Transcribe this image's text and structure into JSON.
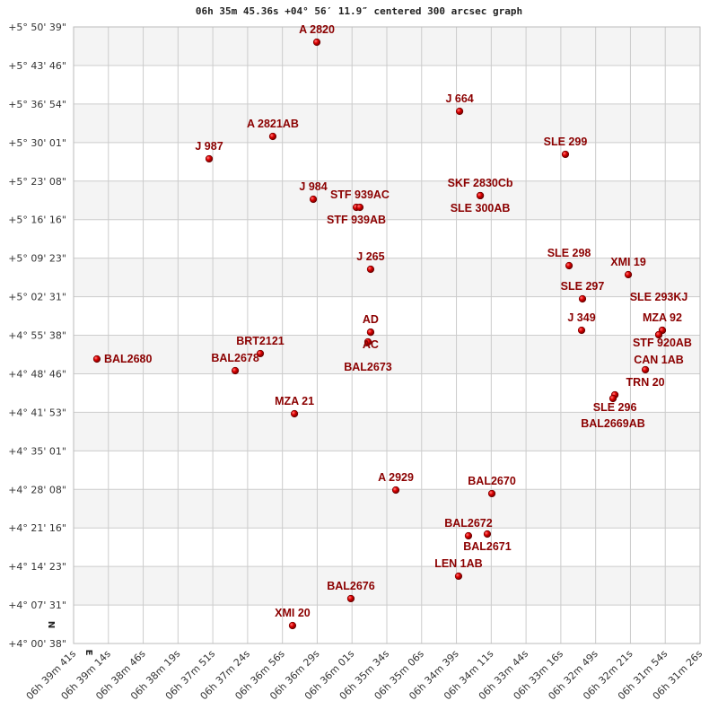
{
  "chart_data": {
    "type": "scatter",
    "title": "06h 35m 45.36s +04° 56′ 11.9″ centered 300 arcsec graph",
    "x_axis": {
      "direction": "RA decreasing to the right",
      "ticks": [
        "06h 39m 41s",
        "06h 39m 14s",
        "06h 38m 46s",
        "06h 38m 19s",
        "06h 37m 51s",
        "06h 37m 24s",
        "06h 36m 56s",
        "06h 36m 29s",
        "06h 36m 01s",
        "06h 35m 34s",
        "06h 35m 06s",
        "06h 34m 39s",
        "06h 34m 11s",
        "06h 33m 44s",
        "06h 33m 16s",
        "06h 32m 49s",
        "06h 32m 21s",
        "06h 31m 54s",
        "06h 31m 26s"
      ]
    },
    "y_axis": {
      "ticks": [
        "+5° 50' 39\"",
        "+5° 43' 46\"",
        "+5° 36' 54\"",
        "+5° 30' 01\"",
        "+5° 23' 08\"",
        "+5° 16' 16\"",
        "+5° 09' 23\"",
        "+5° 02' 31\"",
        "+4° 55' 38\"",
        "+4° 48' 46\"",
        "+4° 41' 53\"",
        "+4° 35' 01\"",
        "+4° 28' 08\"",
        "+4° 21' 16\"",
        "+4° 14' 23\"",
        "+4° 07' 31\"",
        "+4° 00' 38\""
      ]
    },
    "grid": true,
    "banded_rows": true,
    "compass": {
      "north": "N",
      "east": "E"
    },
    "colors": {
      "marker": "#d40000",
      "label": "#8b0000",
      "band": "#f4f4f4",
      "grid": "#cccccc"
    },
    "points": [
      {
        "name": "A  2820",
        "ra": "06h 36m 28.8s",
        "dec": "+5° 47' 56\""
      },
      {
        "name": "J  664",
        "ra": "06h 34m 36.0s",
        "dec": "+5° 35' 36\""
      },
      {
        "name": "A  2821AB",
        "ra": "06h 37m 03.6s",
        "dec": "+5° 31' 07\""
      },
      {
        "name": "J  987",
        "ra": "06h 37m 53.9s",
        "dec": "+5° 27' 07\""
      },
      {
        "name": "SLE 299",
        "ra": "06h 33m 12.4s",
        "dec": "+5° 27' 55\""
      },
      {
        "name": "J  984",
        "ra": "06h 36m 31.6s",
        "dec": "+5° 19' 54\""
      },
      {
        "name": "STF 939AB",
        "ra": "06h 35m 57.6s",
        "dec": "+5° 18' 28\""
      },
      {
        "name": "STF 939AC",
        "ra": "06h 35m 54.8s",
        "dec": "+5° 18' 28\""
      },
      {
        "name": "SKF 2830Cb",
        "ra": "06h 34m 19.7s",
        "dec": "+5° 20' 33\""
      },
      {
        "name": "SLE 300AB",
        "ra": "06h 34m 19.7s",
        "dec": "+5° 20' 33\""
      },
      {
        "name": "J  265",
        "ra": "06h 35m 46.3s",
        "dec": "+5° 07' 25\""
      },
      {
        "name": "SLE 298",
        "ra": "06h 33m 09.5s",
        "dec": "+5° 08' 03\""
      },
      {
        "name": "XMI  19",
        "ra": "06h 32m 22.7s",
        "dec": "+5° 06' 27\""
      },
      {
        "name": "SLE 297",
        "ra": "06h 32m 58.9s",
        "dec": "+5° 02' 08\""
      },
      {
        "name": "J  349",
        "ra": "06h 32m 59.6s",
        "dec": "+4° 56' 31\""
      },
      {
        "name": "MZA  92",
        "ra": "06h 31m 55.8s",
        "dec": "+4° 56' 31\""
      },
      {
        "name": "STF 920AB",
        "ra": "06h 31m 55.8s",
        "dec": "+4° 56' 31\""
      },
      {
        "name": "CAN  1AB",
        "ra": "06h 31m 58.6s",
        "dec": "+4° 55' 44\""
      },
      {
        "name": "SLE 293KJ",
        "ra": "06h 31m 58.6s",
        "dec": "+4° 55' 44\""
      },
      {
        "name": "AD",
        "ra": "06h 35m 46.3s",
        "dec": "+4° 56' 11\""
      },
      {
        "name": "AC",
        "ra": "06h 35m 46.3s",
        "dec": "+4° 56' 11\""
      },
      {
        "name": "BAL2673",
        "ra": "06h 35m 48.4s",
        "dec": "+4° 54' 27\""
      },
      {
        "name": "BAL2680",
        "ra": "06h 39m 22.6s",
        "dec": "+4° 51' 24\""
      },
      {
        "name": "BRT2121",
        "ra": "06h 37m 13.5s",
        "dec": "+4° 52' 22\""
      },
      {
        "name": "BAL2678",
        "ra": "06h 37m 33.3s",
        "dec": "+4° 49' 19\""
      },
      {
        "name": "TRN  20",
        "ra": "06h 32m 09.2s",
        "dec": "+4° 49' 29\""
      },
      {
        "name": "SLE 296",
        "ra": "06h 32m 33.3s",
        "dec": "+4° 45' 00\""
      },
      {
        "name": "BAL2669AB",
        "ra": "06h 32m 34.8s",
        "dec": "+4° 44' 21\""
      },
      {
        "name": "MZA  21",
        "ra": "06h 36m 46.5s",
        "dec": "+4° 41' 38\""
      },
      {
        "name": "A  2929",
        "ra": "06h 35m 26.4s",
        "dec": "+4° 28' 01\""
      },
      {
        "name": "BAL2670",
        "ra": "06h 34m 10.5s",
        "dec": "+4° 27' 23\""
      },
      {
        "name": "BAL2672",
        "ra": "06h 34m 29.0s",
        "dec": "+4° 19' 51\""
      },
      {
        "name": "BAL2671",
        "ra": "06h 34m 14.1s",
        "dec": "+4° 20' 10\""
      },
      {
        "name": "LEN  1AB",
        "ra": "06h 34m 36.8s",
        "dec": "+4° 12' 39\""
      },
      {
        "name": "BAL2676",
        "ra": "06h 36m 01.9s",
        "dec": "+4° 08' 39\""
      },
      {
        "name": "XMI  20",
        "ra": "06h 36m 48.0s",
        "dec": "+4° 03' 50\""
      }
    ]
  }
}
